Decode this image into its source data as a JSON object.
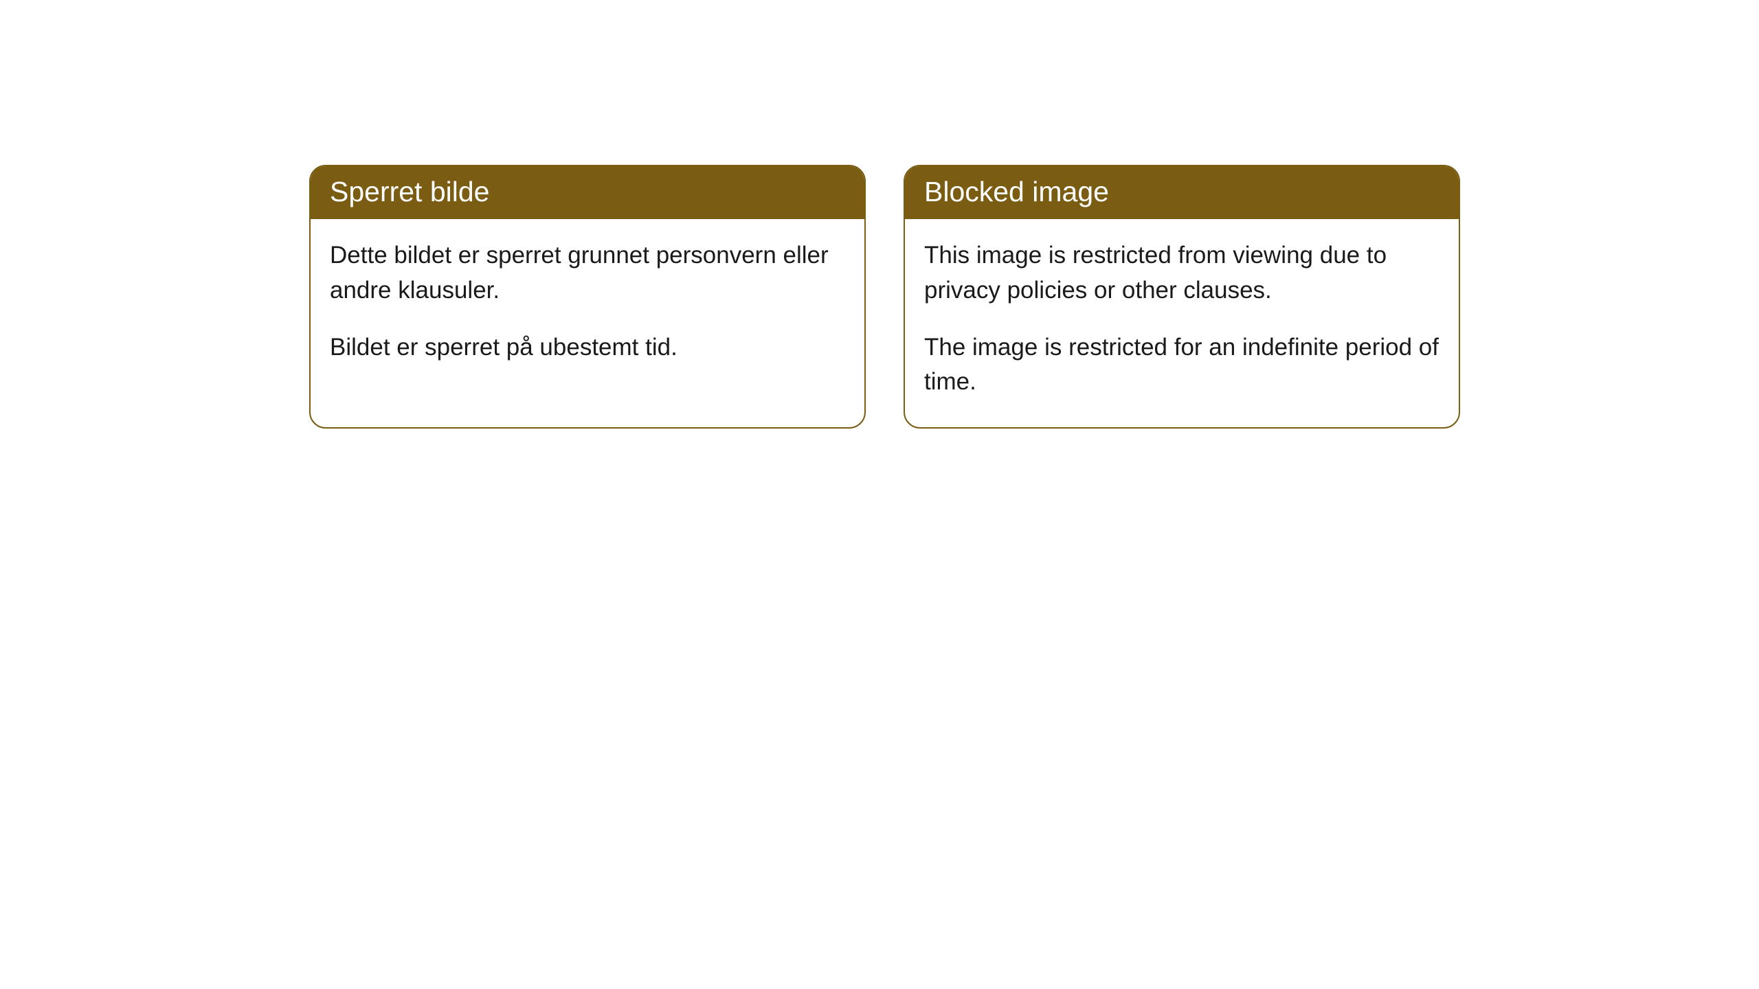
{
  "colors": {
    "header_bg": "#7a5d12",
    "header_text": "#ffffff",
    "body_bg": "#ffffff",
    "body_text": "#1a1a1a",
    "border": "#7a5d12"
  },
  "cards": [
    {
      "title": "Sperret bilde",
      "paragraphs": [
        "Dette bildet er sperret grunnet personvern eller andre klausuler.",
        "Bildet er sperret på ubestemt tid."
      ]
    },
    {
      "title": "Blocked image",
      "paragraphs": [
        "This image is restricted from viewing due to privacy policies or other clauses.",
        "The image is restricted for an indefinite period of time."
      ]
    }
  ]
}
